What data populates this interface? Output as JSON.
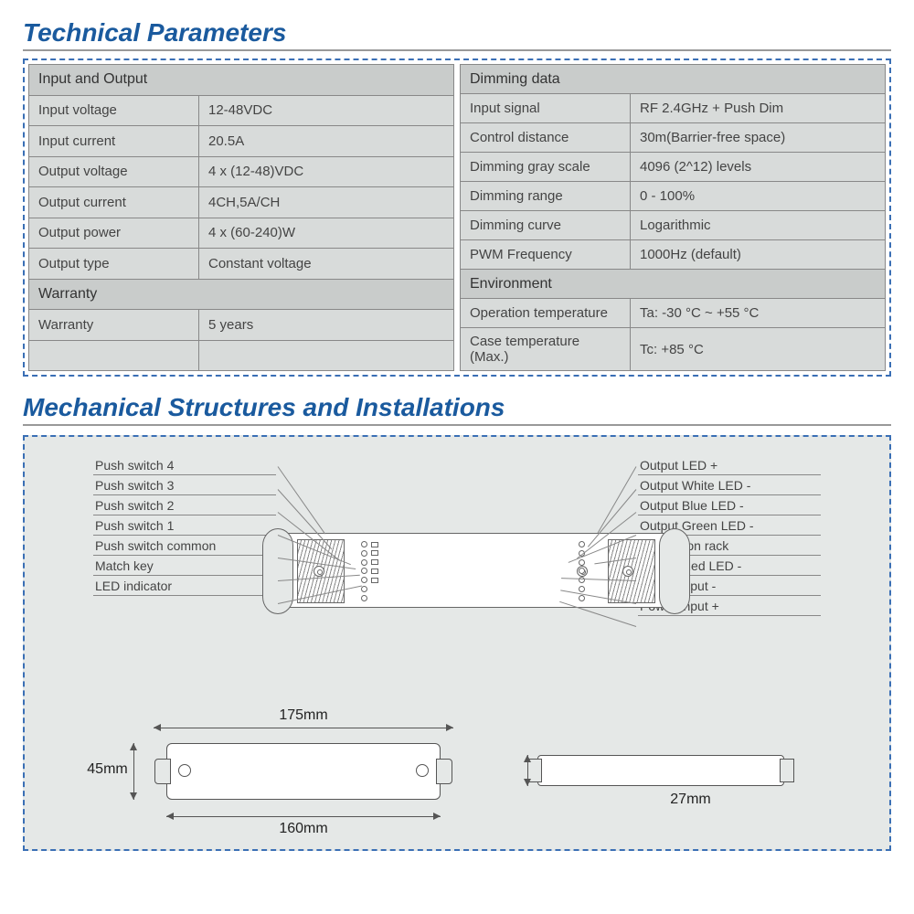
{
  "titles": {
    "tech": "Technical Parameters",
    "mech": "Mechanical Structures and Installations"
  },
  "table_left": {
    "sections": [
      {
        "header": "Input and Output",
        "rows": [
          [
            "Input voltage",
            "12-48VDC"
          ],
          [
            "Input current",
            "20.5A"
          ],
          [
            "Output voltage",
            "4 x (12-48)VDC"
          ],
          [
            "Output current",
            "4CH,5A/CH"
          ],
          [
            "Output power",
            "4 x (60-240)W"
          ],
          [
            "Output type",
            "Constant voltage"
          ]
        ]
      },
      {
        "header": "Warranty",
        "rows": [
          [
            "Warranty",
            "5 years"
          ],
          [
            "",
            ""
          ]
        ]
      }
    ]
  },
  "table_right": {
    "sections": [
      {
        "header": "Dimming data",
        "rows": [
          [
            "Input signal",
            "RF 2.4GHz + Push Dim"
          ],
          [
            "Control distance",
            "30m(Barrier-free space)"
          ],
          [
            "Dimming gray scale",
            "4096 (2^12) levels"
          ],
          [
            "Dimming range",
            "0 - 100%"
          ],
          [
            "Dimming curve",
            "Logarithmic"
          ],
          [
            "PWM Frequency",
            "1000Hz (default)"
          ]
        ]
      },
      {
        "header": "Environment",
        "rows": [
          [
            "Operation temperature",
            "Ta: -30 °C ~ +55 °C"
          ],
          [
            "Case temperature (Max.)",
            "Tc: +85 °C"
          ]
        ]
      }
    ]
  },
  "callouts_left": [
    "Push switch 4",
    "Push switch 3",
    "Push switch 2",
    "Push switch 1",
    "Push switch common",
    "Match key",
    "LED indicator"
  ],
  "callouts_right": [
    "Output LED +",
    "Output White LED -",
    "Output Blue LED -",
    "Output Green LED -",
    "Installation rack",
    "Output Red LED -",
    "Power Input -",
    "Power Input +"
  ],
  "dimensions": {
    "overall_length": "175mm",
    "body_length": "160mm",
    "height": "45mm",
    "thickness": "27mm"
  },
  "colors": {
    "title": "#1a5a9e",
    "dash_border": "#3a6fb5",
    "cell_bg": "#d8dbda",
    "header_bg": "#c9cccb",
    "panel_bg": "#e5e8e7",
    "line": "#888"
  }
}
